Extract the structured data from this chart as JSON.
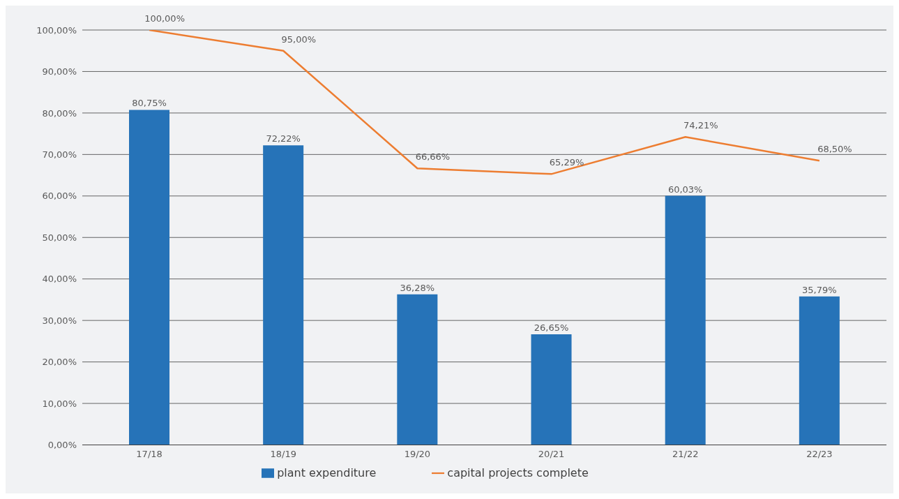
{
  "chart_data": {
    "type": "bar",
    "categories": [
      "17/18",
      "18/19",
      "19/20",
      "20/21",
      "21/22",
      "22/23"
    ],
    "series": [
      {
        "name": "plant expenditure",
        "color": "#2673b8",
        "values": [
          80.75,
          72.22,
          36.28,
          26.65,
          60.03,
          35.79
        ],
        "value_labels": [
          "80,75%",
          "72,22%",
          "36,28%",
          "26,65%",
          "60,03%",
          "35,79%"
        ]
      },
      {
        "name": "capital projects complete",
        "type": "line",
        "color": "#ed7d31",
        "values": [
          100,
          95,
          66.66,
          65.29,
          74.21,
          68.5
        ],
        "value_labels": [
          "100,00%",
          "95,00%",
          "66,66%",
          "65,29%",
          "74,21%",
          "68,50%"
        ]
      }
    ],
    "ylim": [
      0,
      100
    ],
    "yticks": [
      {
        "value": 0,
        "label": "0,00%"
      },
      {
        "value": 10,
        "label": "10,00%"
      },
      {
        "value": 20,
        "label": "20,00%"
      },
      {
        "value": 30,
        "label": "30,00%"
      },
      {
        "value": 40,
        "label": "40,00%"
      },
      {
        "value": 50,
        "label": "50,00%"
      },
      {
        "value": 60,
        "label": "60,00%"
      },
      {
        "value": 70,
        "label": "70,00%"
      },
      {
        "value": 80,
        "label": "80,00%"
      },
      {
        "value": 90,
        "label": "90,00%"
      },
      {
        "value": 100,
        "label": "100,00%"
      }
    ],
    "grid": "y",
    "legend": "bottom",
    "marker": "none",
    "line_style": "solid"
  }
}
